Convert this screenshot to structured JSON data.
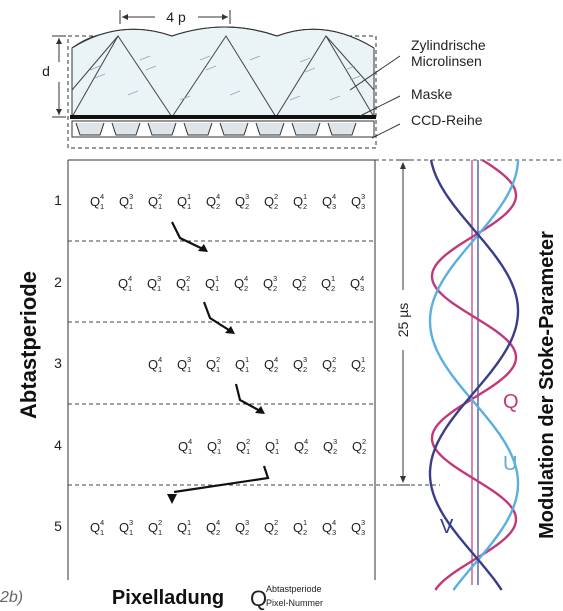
{
  "lens_diagram": {
    "period_label": "4 p",
    "thickness_label": "d",
    "labels": {
      "lenses": [
        "Zylindrische",
        "Microlinsen"
      ],
      "mask": "Maske",
      "ccd": "CCD-Reihe"
    }
  },
  "axes": {
    "left_title": "Abtastperiode",
    "right_title": "Modulation der Stoke-Parameter",
    "bottom_title": "Pixelladung",
    "charge_symbol": "Q",
    "charge_sup": "Abtastperiode",
    "charge_sub": "Pixel-Nummer",
    "time_label": "25 µs",
    "figure_tag": "2b)"
  },
  "rows": [
    {
      "period": "1",
      "charges": [
        [
          "4",
          "1"
        ],
        [
          "3",
          "1"
        ],
        [
          "2",
          "1"
        ],
        [
          "1",
          "1"
        ],
        [
          "4",
          "2"
        ],
        [
          "3",
          "2"
        ],
        [
          "2",
          "2"
        ],
        [
          "1",
          "2"
        ],
        [
          "4",
          "3"
        ],
        [
          "3",
          "3"
        ]
      ]
    },
    {
      "period": "2",
      "charges": [
        [
          "4",
          "1"
        ],
        [
          "3",
          "1"
        ],
        [
          "2",
          "1"
        ],
        [
          "1",
          "1"
        ],
        [
          "4",
          "2"
        ],
        [
          "3",
          "2"
        ],
        [
          "2",
          "2"
        ],
        [
          "1",
          "2"
        ],
        [
          "4",
          "3"
        ]
      ]
    },
    {
      "period": "3",
      "charges": [
        [
          "4",
          "1"
        ],
        [
          "3",
          "1"
        ],
        [
          "2",
          "1"
        ],
        [
          "1",
          "1"
        ],
        [
          "4",
          "2"
        ],
        [
          "3",
          "2"
        ],
        [
          "2",
          "2"
        ],
        [
          "1",
          "2"
        ]
      ]
    },
    {
      "period": "4",
      "charges": [
        [
          "4",
          "1"
        ],
        [
          "3",
          "1"
        ],
        [
          "2",
          "1"
        ],
        [
          "1",
          "1"
        ],
        [
          "4",
          "2"
        ],
        [
          "3",
          "2"
        ],
        [
          "2",
          "2"
        ]
      ]
    },
    {
      "period": "5",
      "charges": [
        [
          "4",
          "1"
        ],
        [
          "3",
          "1"
        ],
        [
          "2",
          "1"
        ],
        [
          "1",
          "1"
        ],
        [
          "4",
          "2"
        ],
        [
          "3",
          "2"
        ],
        [
          "2",
          "2"
        ],
        [
          "1",
          "2"
        ],
        [
          "4",
          "3"
        ],
        [
          "3",
          "3"
        ]
      ]
    }
  ],
  "waves": [
    {
      "name": "Q",
      "color": "#c0397a"
    },
    {
      "name": "U",
      "color": "#5aaee0"
    },
    {
      "name": "V",
      "color": "#3a3e8a"
    }
  ]
}
